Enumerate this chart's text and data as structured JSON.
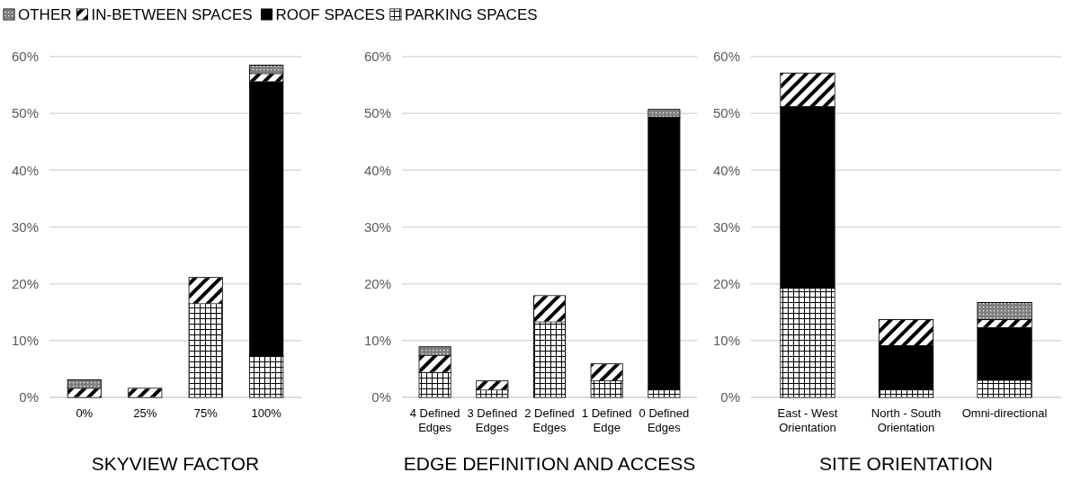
{
  "chart_data": [
    {
      "type": "bar",
      "stacked": true,
      "xlabel": "SKYVIEW FACTOR",
      "categories": [
        "0%",
        "25%",
        "75%",
        "100%"
      ],
      "ylim": [
        0,
        60
      ],
      "yticks": [
        {
          "value": 0,
          "label": "0%"
        },
        {
          "value": 10,
          "label": "10%"
        },
        {
          "value": 20,
          "label": "20%"
        },
        {
          "value": 30,
          "label": "30%"
        },
        {
          "value": 40,
          "label": "40%"
        },
        {
          "value": 50,
          "label": "50%"
        },
        {
          "value": 60,
          "label": "60%"
        }
      ],
      "grid": "y",
      "legend": "top",
      "series": [
        {
          "name": "PARKING SPACES",
          "color": "#ffffff",
          "values": [
            null,
            null,
            16.5,
            7.2
          ]
        },
        {
          "name": "ROOF SPACES",
          "color": "#000000",
          "values": [
            null,
            null,
            null,
            48.4
          ]
        },
        {
          "name": "IN-BETWEEN SPACES",
          "color": "#ffffff",
          "values": [
            1.6,
            1.6,
            4.6,
            1.4
          ]
        },
        {
          "name": "OTHER",
          "color": "#808080",
          "values": [
            1.5,
            null,
            null,
            1.5
          ]
        }
      ]
    },
    {
      "type": "bar",
      "stacked": true,
      "xlabel": "EDGE DEFINITION AND ACCESS",
      "categories": [
        "4 Defined Edges",
        "3 Defined Edges",
        "2 Defined Edges",
        "1 Defined Edge",
        "0 Defined Edges"
      ],
      "ylim": [
        0,
        60
      ],
      "yticks": [
        {
          "value": 0,
          "label": "0%"
        },
        {
          "value": 10,
          "label": "10%"
        },
        {
          "value": 20,
          "label": "20%"
        },
        {
          "value": 30,
          "label": "30%"
        },
        {
          "value": 40,
          "label": "40%"
        },
        {
          "value": 50,
          "label": "50%"
        },
        {
          "value": 60,
          "label": "60%"
        }
      ],
      "grid": "y",
      "series": [
        {
          "color": "#ffffff",
          "values": [
            4.4,
            1.3,
            13.3,
            2.9,
            1.3
          ]
        },
        {
          "color": "#000000",
          "values": [
            null,
            null,
            null,
            null,
            48.0
          ]
        },
        {
          "color": "#ffffff",
          "values": [
            3.0,
            1.6,
            4.6,
            3.0,
            null
          ]
        },
        {
          "color": "#808080",
          "values": [
            1.5,
            null,
            null,
            null,
            1.4
          ]
        }
      ]
    },
    {
      "type": "bar",
      "stacked": true,
      "xlabel": "SITE ORIENTATION",
      "categories": [
        "East - West Orientation",
        "North - South Orientation",
        "Omni-directional"
      ],
      "ylim": [
        0,
        60
      ],
      "yticks": [
        {
          "value": 0,
          "label": "0%"
        },
        {
          "value": 10,
          "label": "10%"
        },
        {
          "value": 20,
          "label": "20%"
        },
        {
          "value": 30,
          "label": "30%"
        },
        {
          "value": 40,
          "label": "40%"
        },
        {
          "value": 50,
          "label": "50%"
        },
        {
          "value": 60,
          "label": "60%"
        }
      ],
      "grid": "y",
      "series": [
        {
          "color": "#ffffff",
          "values": [
            19.2,
            1.3,
            3.0
          ]
        },
        {
          "color": "#000000",
          "values": [
            32.0,
            7.8,
            9.3
          ]
        },
        {
          "color": "#ffffff",
          "values": [
            5.9,
            4.6,
            1.4
          ]
        },
        {
          "color": "#808080",
          "values": [
            null,
            null,
            3.0
          ]
        }
      ]
    }
  ]
}
